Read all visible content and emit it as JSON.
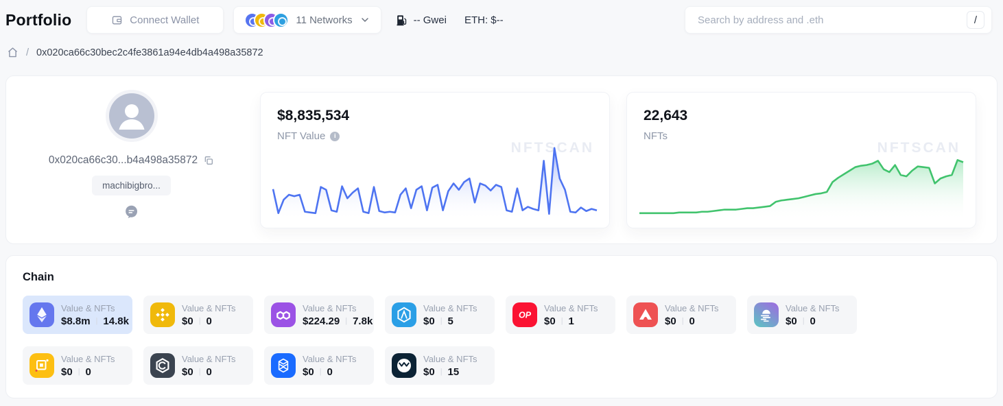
{
  "header": {
    "title": "Portfolio",
    "connect_wallet": "Connect Wallet",
    "networks_label": "11 Networks",
    "networks": [
      {
        "name": "ethereum",
        "color": "#5674f0"
      },
      {
        "name": "bnb",
        "color": "#f0b90b"
      },
      {
        "name": "polygon",
        "color": "#8b5ce6"
      },
      {
        "name": "arbitrum",
        "color": "#2d9fe0"
      }
    ],
    "gas_value": "-- Gwei",
    "eth_price": "ETH: $--",
    "search_placeholder": "Search by address and .eth",
    "search_shortcut": "/"
  },
  "breadcrumb": {
    "separator": "/",
    "address": "0x020ca66c30bec2c4fe3861a94e4db4a498a35872"
  },
  "profile": {
    "address_short": "0x020ca66c30...b4a498a35872",
    "ens_badge": "machibigbro..."
  },
  "summary_cards": [
    {
      "value": "$8,835,534",
      "label": "NFT Value",
      "watermark": "NFTSCAN"
    },
    {
      "value": "22,643",
      "label": "NFTs",
      "watermark": "NFTSCAN"
    }
  ],
  "chain_section": {
    "title": "Chain",
    "stat_label": "Value & NFTs",
    "selected_bg": "#dbe7fc",
    "cards": [
      {
        "chain": "ethereum",
        "value": "$8.8m",
        "nfts": "14.8k",
        "selected": true,
        "icon_bg": "#6577ee"
      },
      {
        "chain": "bnb",
        "value": "$0",
        "nfts": "0",
        "selected": false,
        "icon_bg": "#f0b90b"
      },
      {
        "chain": "polygon",
        "value": "$224.29",
        "nfts": "7.8k",
        "selected": false,
        "icon_bg": "#9b52e5"
      },
      {
        "chain": "arbitrum",
        "value": "$0",
        "nfts": "5",
        "selected": false,
        "icon_bg": "#2b9fe6"
      },
      {
        "chain": "optimism",
        "value": "$0",
        "nfts": "1",
        "selected": false,
        "icon_bg": "#fb1333"
      },
      {
        "chain": "avalanche",
        "value": "$0",
        "nfts": "0",
        "selected": false,
        "icon_bg": "#ee5253"
      },
      {
        "chain": "moonbeam",
        "value": "$0",
        "nfts": "0",
        "selected": false,
        "icon_bg": "linear-gradient(215deg,#a06ae0 0%,#5bc6c2 100%)"
      },
      {
        "chain": "platon",
        "value": "$0",
        "nfts": "0",
        "selected": false,
        "icon_bg": "#fdbf12"
      },
      {
        "chain": "cronos",
        "value": "$0",
        "nfts": "0",
        "selected": false,
        "icon_bg": "#3b4450"
      },
      {
        "chain": "fantom",
        "value": "$0",
        "nfts": "0",
        "selected": false,
        "icon_bg": "#1a6bff"
      },
      {
        "chain": "gnosis",
        "value": "$0",
        "nfts": "15",
        "selected": false,
        "icon_bg": "#0c2335"
      }
    ]
  },
  "chart_data": [
    {
      "type": "area",
      "title": "$8,835,534",
      "series_name": "NFT Value trend",
      "line_color": "#4e74f1",
      "fill_from": "#93a9f6",
      "x_axis": "hidden",
      "y_axis": "hidden",
      "ylim": [
        0,
        100
      ],
      "values": [
        42,
        8,
        27,
        34,
        32,
        34,
        10,
        9,
        8,
        45,
        41,
        12,
        10,
        46,
        29,
        37,
        43,
        10,
        8,
        45,
        11,
        9,
        10,
        9,
        34,
        43,
        15,
        41,
        46,
        12,
        44,
        48,
        12,
        39,
        50,
        41,
        52,
        57,
        23,
        50,
        47,
        40,
        48,
        45,
        12,
        10,
        43,
        12,
        17,
        14,
        12,
        82,
        7,
        100,
        57,
        41,
        10,
        9,
        16,
        11,
        14,
        12
      ]
    },
    {
      "type": "area",
      "title": "22,643",
      "series_name": "NFT count trend",
      "line_color": "#41c36d",
      "fill_from": "#a9e8c0",
      "x_axis": "hidden",
      "y_axis": "hidden",
      "ylim": [
        0,
        100
      ],
      "values": [
        8,
        8,
        8,
        8,
        8,
        8,
        8,
        9,
        9,
        9,
        9,
        10,
        10,
        11,
        12,
        13,
        13,
        13,
        14,
        15,
        15,
        16,
        17,
        18,
        24,
        26,
        27,
        28,
        29,
        31,
        33,
        35,
        36,
        38,
        52,
        58,
        63,
        68,
        73,
        75,
        76,
        78,
        82,
        70,
        66,
        76,
        62,
        60,
        68,
        74,
        73,
        72,
        50,
        57,
        60,
        62,
        83,
        80
      ]
    }
  ]
}
